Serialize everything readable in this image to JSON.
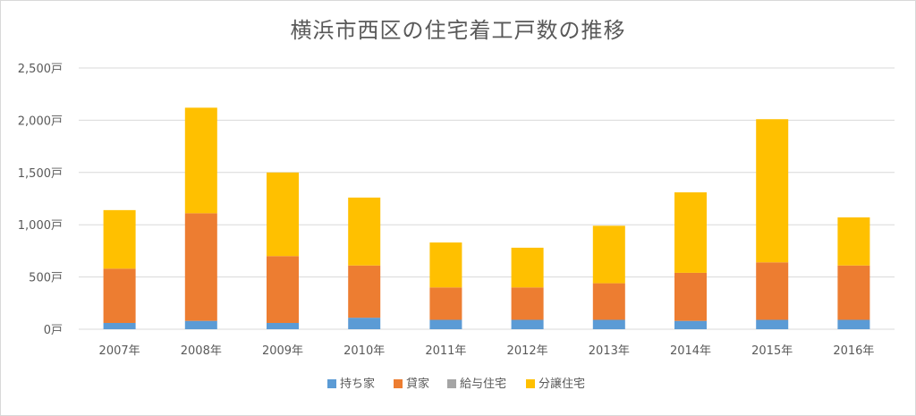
{
  "chart_data": {
    "type": "bar",
    "stacked": true,
    "title": "横浜市西区の住宅着工戸数の推移",
    "xlabel": "",
    "ylabel": "",
    "unit": "戸",
    "ylim": [
      0,
      2500
    ],
    "yticks": [
      0,
      500,
      1000,
      1500,
      2000,
      2500
    ],
    "ytick_labels": [
      "0戸",
      "500戸",
      "1,000戸",
      "1,500戸",
      "2,000戸",
      "2,500戸"
    ],
    "grid": true,
    "legend_position": "bottom",
    "categories": [
      "2007年",
      "2008年",
      "2009年",
      "2010年",
      "2011年",
      "2012年",
      "2013年",
      "2014年",
      "2015年",
      "2016年"
    ],
    "series": [
      {
        "name": "持ち家",
        "color": "#5B9BD5",
        "values": [
          60,
          80,
          60,
          110,
          90,
          90,
          90,
          80,
          90,
          90
        ]
      },
      {
        "name": "貸家",
        "color": "#ED7D31",
        "values": [
          520,
          1030,
          640,
          500,
          310,
          310,
          350,
          460,
          550,
          520
        ]
      },
      {
        "name": "給与住宅",
        "color": "#A5A5A5",
        "values": [
          0,
          0,
          0,
          0,
          0,
          0,
          0,
          0,
          0,
          0
        ]
      },
      {
        "name": "分譲住宅",
        "color": "#FFC000",
        "values": [
          560,
          1010,
          800,
          650,
          430,
          380,
          550,
          770,
          1370,
          460
        ]
      }
    ]
  }
}
